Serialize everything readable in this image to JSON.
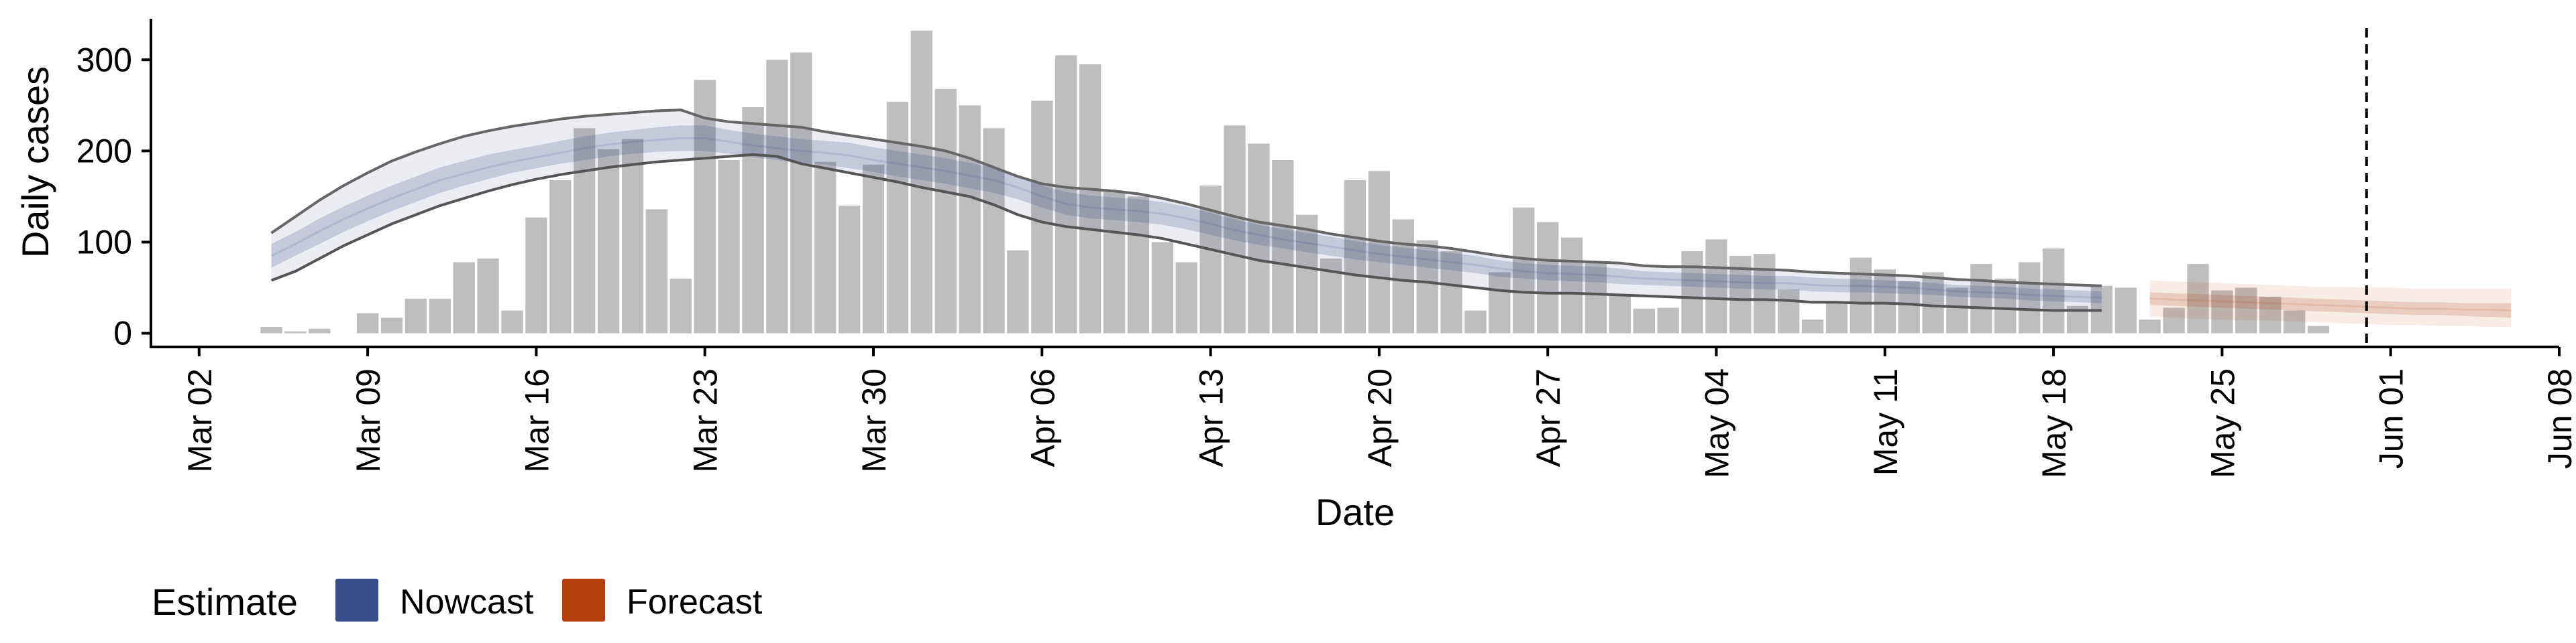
{
  "chart_data": {
    "type": "bar",
    "title": "",
    "xlabel": "Date",
    "ylabel": "Daily cases",
    "xlim": [
      "2020-02-29",
      "2020-06-08"
    ],
    "ylim": [
      -15,
      345
    ],
    "y_ticks": [
      0,
      100,
      200,
      300
    ],
    "x_ticks": [
      {
        "date": "2020-03-02",
        "label": "Mar 02"
      },
      {
        "date": "2020-03-09",
        "label": "Mar 09"
      },
      {
        "date": "2020-03-16",
        "label": "Mar 16"
      },
      {
        "date": "2020-03-23",
        "label": "Mar 23"
      },
      {
        "date": "2020-03-30",
        "label": "Mar 30"
      },
      {
        "date": "2020-04-06",
        "label": "Apr 06"
      },
      {
        "date": "2020-04-13",
        "label": "Apr 13"
      },
      {
        "date": "2020-04-20",
        "label": "Apr 20"
      },
      {
        "date": "2020-04-27",
        "label": "Apr 27"
      },
      {
        "date": "2020-05-04",
        "label": "May 04"
      },
      {
        "date": "2020-05-11",
        "label": "May 11"
      },
      {
        "date": "2020-05-18",
        "label": "May 18"
      },
      {
        "date": "2020-05-25",
        "label": "May 25"
      },
      {
        "date": "2020-06-01",
        "label": "Jun 01"
      },
      {
        "date": "2020-06-08",
        "label": "Jun 08"
      }
    ],
    "grid": false,
    "reference_line": {
      "date": "2020-05-31",
      "style": "dashed",
      "color": "#000000"
    },
    "bars": {
      "start_date": "2020-03-05",
      "color": "#bebebe",
      "values": [
        7,
        2,
        5,
        0,
        22,
        17,
        38,
        38,
        78,
        82,
        25,
        127,
        168,
        225,
        202,
        213,
        136,
        60,
        278,
        190,
        248,
        300,
        308,
        188,
        140,
        185,
        254,
        332,
        268,
        250,
        225,
        91,
        255,
        305,
        295,
        155,
        150,
        100,
        78,
        162,
        228,
        208,
        190,
        130,
        82,
        168,
        178,
        125,
        102,
        90,
        25,
        67,
        138,
        122,
        105,
        78,
        42,
        27,
        28,
        90,
        103,
        85,
        87,
        48,
        15,
        33,
        83,
        70,
        57,
        67,
        50,
        76,
        60,
        78,
        93,
        30,
        52,
        50,
        15,
        28,
        76,
        47,
        50,
        40,
        25,
        8
      ]
    },
    "nowcast": {
      "start_date": "2020-03-05",
      "color": "#3b4f8c",
      "median": [
        85,
        98,
        112,
        125,
        137,
        148,
        158,
        168,
        175,
        182,
        188,
        193,
        198,
        203,
        207,
        210,
        212,
        214,
        214,
        210,
        206,
        203,
        200,
        198,
        195,
        190,
        186,
        182,
        178,
        173,
        168,
        160,
        150,
        142,
        138,
        136,
        134,
        131,
        126,
        120,
        113,
        108,
        103,
        99,
        95,
        91,
        87,
        84,
        81,
        78,
        75,
        71,
        68,
        66,
        65,
        64,
        62,
        60,
        59,
        58,
        57,
        56,
        55,
        55,
        53,
        52,
        52,
        51,
        50,
        48,
        46,
        45,
        44,
        42,
        41,
        40,
        39
      ],
      "inner_lower": [
        72,
        85,
        98,
        111,
        123,
        134,
        144,
        154,
        162,
        169,
        176,
        181,
        186,
        190,
        194,
        197,
        199,
        200,
        200,
        197,
        193,
        190,
        187,
        185,
        181,
        177,
        172,
        168,
        164,
        159,
        154,
        147,
        138,
        130,
        126,
        124,
        122,
        119,
        114,
        108,
        102,
        97,
        93,
        89,
        85,
        81,
        78,
        75,
        72,
        69,
        66,
        62,
        60,
        58,
        57,
        56,
        54,
        53,
        52,
        51,
        50,
        49,
        48,
        48,
        46,
        45,
        45,
        44,
        43,
        42,
        40,
        39,
        38,
        36,
        35,
        34,
        33
      ],
      "inner_upper": [
        98,
        111,
        126,
        139,
        151,
        162,
        172,
        182,
        189,
        196,
        201,
        206,
        211,
        216,
        220,
        223,
        226,
        228,
        228,
        223,
        219,
        216,
        213,
        211,
        209,
        204,
        200,
        196,
        192,
        187,
        182,
        173,
        162,
        155,
        151,
        149,
        147,
        144,
        139,
        132,
        125,
        119,
        114,
        110,
        106,
        101,
        97,
        94,
        91,
        88,
        85,
        80,
        77,
        75,
        74,
        73,
        71,
        68,
        67,
        66,
        65,
        64,
        63,
        63,
        61,
        60,
        59,
        58,
        57,
        55,
        53,
        52,
        51,
        49,
        48,
        47,
        46
      ],
      "outer_lower": [
        58,
        68,
        82,
        96,
        108,
        120,
        130,
        140,
        148,
        156,
        163,
        169,
        174,
        178,
        182,
        185,
        188,
        190,
        192,
        194,
        196,
        194,
        186,
        181,
        176,
        171,
        166,
        160,
        155,
        150,
        141,
        130,
        122,
        117,
        114,
        111,
        108,
        104,
        98,
        92,
        86,
        80,
        76,
        72,
        68,
        64,
        61,
        58,
        56,
        53,
        50,
        47,
        45,
        44,
        44,
        43,
        42,
        41,
        40,
        39,
        38,
        37,
        37,
        36,
        34,
        34,
        33,
        33,
        32,
        30,
        29,
        28,
        27,
        26,
        25,
        25,
        25
      ],
      "outer_upper": [
        110,
        128,
        146,
        162,
        176,
        189,
        199,
        208,
        216,
        222,
        227,
        231,
        235,
        238,
        240,
        242,
        244,
        245,
        236,
        232,
        230,
        228,
        226,
        221,
        217,
        213,
        209,
        205,
        200,
        192,
        182,
        172,
        164,
        160,
        158,
        156,
        153,
        148,
        142,
        135,
        128,
        122,
        118,
        114,
        109,
        105,
        101,
        98,
        96,
        93,
        89,
        85,
        82,
        80,
        79,
        78,
        77,
        74,
        73,
        73,
        72,
        71,
        70,
        69,
        67,
        66,
        65,
        64,
        63,
        61,
        59,
        58,
        56,
        55,
        54,
        53,
        52
      ]
    },
    "forecast": {
      "start_date": "2020-05-22",
      "color": "#b4400e",
      "median": [
        38,
        37,
        36,
        35,
        34,
        33,
        32,
        31,
        30,
        29,
        28,
        27,
        27,
        26,
        26,
        25
      ],
      "inner_lower": [
        31,
        30,
        29,
        28,
        27,
        26,
        25,
        24,
        23,
        22,
        21,
        20,
        20,
        19,
        18,
        17
      ],
      "inner_upper": [
        45,
        44,
        43,
        42,
        41,
        40,
        39,
        38,
        37,
        36,
        35,
        34,
        34,
        33,
        33,
        33
      ],
      "outer_lower": [
        18,
        17,
        16,
        15,
        14,
        14,
        13,
        12,
        11,
        10,
        9,
        9,
        8,
        8,
        7,
        7
      ],
      "outer_upper": [
        58,
        57,
        56,
        55,
        54,
        53,
        52,
        51,
        51,
        50,
        50,
        49,
        49,
        49,
        49,
        49
      ]
    },
    "legend": {
      "title": "Estimate",
      "position": "bottom-left",
      "entries": [
        {
          "label": "Nowcast",
          "color": "#3b4f8c"
        },
        {
          "label": "Forecast",
          "color": "#b4400e"
        }
      ]
    }
  }
}
